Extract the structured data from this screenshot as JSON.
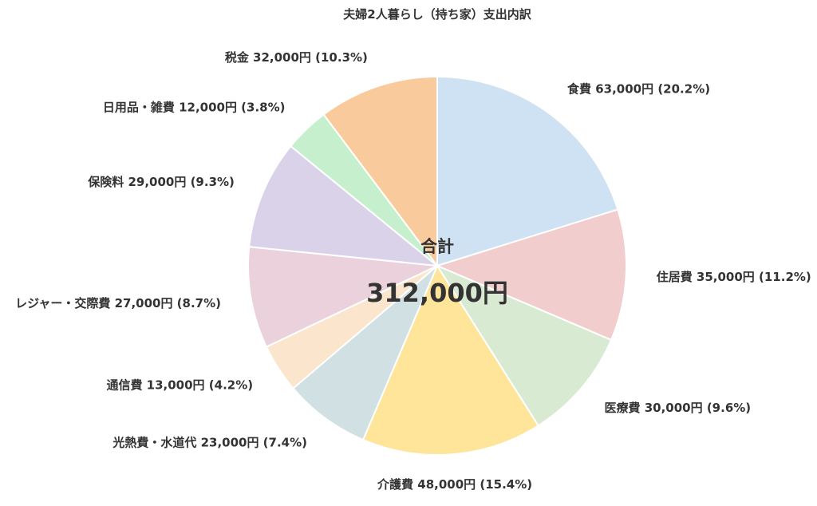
{
  "chart_data": {
    "type": "pie",
    "title": "夫婦2人暮らし（持ち家）支出内訳",
    "center_label": "合計",
    "center_total": "312,000円",
    "slices": [
      {
        "name": "食費",
        "value": 63000,
        "text": "食費 63,000円 (20.2%)",
        "color": "#cfe2f3"
      },
      {
        "name": "住居費",
        "value": 35000,
        "text": "住居費 35,000円 (11.2%)",
        "color": "#f2cdcd"
      },
      {
        "name": "医療費",
        "value": 30000,
        "text": "医療費 30,000円 (9.6%)",
        "color": "#d9ead3"
      },
      {
        "name": "介護費",
        "value": 48000,
        "text": "介護費 48,000円 (15.4%)",
        "color": "#ffe599"
      },
      {
        "name": "光熱費・水道代",
        "value": 23000,
        "text": "光熱費・水道代 23,000円 (7.4%)",
        "color": "#d0e0e3"
      },
      {
        "name": "通信費",
        "value": 13000,
        "text": "通信費 13,000円 (4.2%)",
        "color": "#fce5cd"
      },
      {
        "name": "レジャー・交際費",
        "value": 27000,
        "text": "レジャー・交際費 27,000円 (8.7%)",
        "color": "#ead1dc"
      },
      {
        "name": "保険料",
        "value": 29000,
        "text": "保険料 29,000円 (9.3%)",
        "color": "#d9d2e9"
      },
      {
        "name": "日用品・雑費",
        "value": 12000,
        "text": "日用品・雑費 12,000円 (3.8%)",
        "color": "#c6efce"
      },
      {
        "name": "税金",
        "value": 32000,
        "text": "税金 32,000円 (10.3%)",
        "color": "#f9cb9c"
      }
    ]
  }
}
